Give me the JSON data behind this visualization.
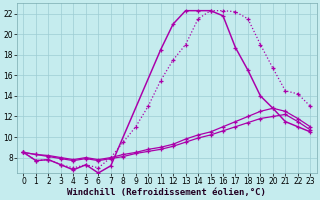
{
  "xlabel": "Windchill (Refroidissement éolien,°C)",
  "xlim": [
    -0.5,
    23.5
  ],
  "ylim": [
    6.5,
    23
  ],
  "xticks": [
    0,
    1,
    2,
    3,
    4,
    5,
    6,
    7,
    8,
    9,
    10,
    11,
    12,
    13,
    14,
    15,
    16,
    17,
    18,
    19,
    20,
    21,
    22,
    23
  ],
  "yticks": [
    8,
    10,
    12,
    14,
    16,
    18,
    20,
    22
  ],
  "bg_color": "#c5ecee",
  "grid_color": "#9ecdd3",
  "line_color": "#aa00aa",
  "line1_x": [
    0,
    1,
    2,
    3,
    4,
    5,
    6,
    7,
    8,
    9,
    10,
    11,
    12,
    13,
    14,
    15,
    16,
    17,
    18,
    19,
    20,
    21,
    22,
    23
  ],
  "line1_y": [
    8.5,
    7.7,
    7.8,
    7.3,
    7.0,
    7.3,
    7.0,
    8.0,
    9.5,
    11.0,
    13.0,
    15.5,
    17.5,
    19.0,
    21.5,
    22.3,
    22.3,
    22.2,
    21.5,
    19.0,
    16.7,
    14.5,
    14.2,
    13.0
  ],
  "line2_x": [
    0,
    1,
    2,
    3,
    4,
    5,
    6,
    7,
    11,
    12,
    13,
    14,
    15,
    16,
    17,
    18,
    19,
    20,
    21,
    22,
    23
  ],
  "line2_y": [
    8.5,
    7.7,
    7.8,
    7.3,
    6.8,
    7.3,
    6.5,
    7.2,
    18.5,
    21.0,
    22.3,
    22.3,
    22.3,
    21.8,
    18.7,
    16.5,
    14.0,
    12.8,
    11.5,
    11.0,
    10.5
  ],
  "line3_x": [
    0,
    1,
    2,
    3,
    4,
    5,
    6,
    7,
    8,
    9,
    10,
    11,
    12,
    13,
    14,
    15,
    16,
    17,
    18,
    19,
    20,
    21,
    22,
    23
  ],
  "line3_y": [
    8.5,
    8.3,
    8.2,
    8.0,
    7.8,
    8.0,
    7.8,
    8.0,
    8.3,
    8.5,
    8.8,
    9.0,
    9.3,
    9.8,
    10.2,
    10.5,
    11.0,
    11.5,
    12.0,
    12.5,
    12.8,
    12.5,
    11.8,
    11.0
  ],
  "line4_x": [
    0,
    1,
    2,
    3,
    4,
    5,
    6,
    7,
    8,
    9,
    10,
    11,
    12,
    13,
    14,
    15,
    16,
    17,
    18,
    19,
    20,
    21,
    22,
    23
  ],
  "line4_y": [
    8.5,
    8.3,
    8.1,
    7.9,
    7.7,
    7.9,
    7.7,
    7.9,
    8.1,
    8.4,
    8.6,
    8.8,
    9.1,
    9.5,
    9.9,
    10.2,
    10.6,
    11.0,
    11.4,
    11.8,
    12.0,
    12.2,
    11.5,
    10.7
  ],
  "tick_fontsize": 5.5,
  "xlabel_fontsize": 6.5,
  "marker_size": 3,
  "line_width": 0.9
}
